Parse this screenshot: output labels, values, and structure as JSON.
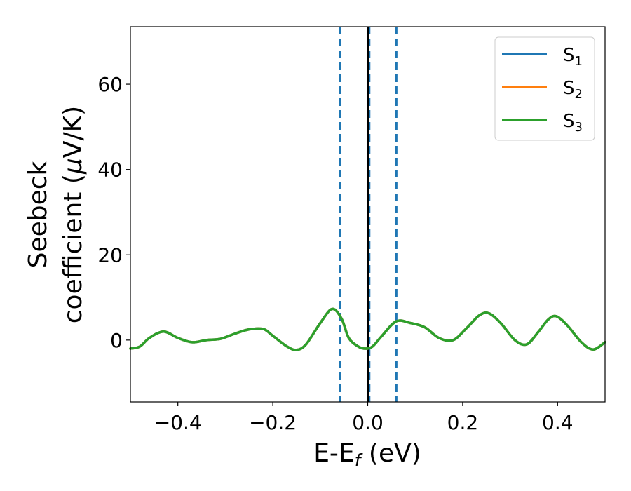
{
  "chart_data": {
    "type": "line",
    "xlabel": "E-E",
    "xlabel_subscript": "f",
    "xlabel_units": " (eV)",
    "ylabel_line1": "Seebeck",
    "ylabel_line2": "coefficient  (",
    "ylabel_mu": "μ",
    "ylabel_units": "V/K)",
    "xlim": [
      -0.5,
      0.5
    ],
    "ylim": [
      -14.5,
      73.5
    ],
    "xticks": [
      -0.4,
      -0.2,
      0.0,
      0.2,
      0.4
    ],
    "xtick_labels": [
      "−0.4",
      "−0.2",
      "0.0",
      "0.2",
      "0.4"
    ],
    "yticks": [
      0,
      20,
      40,
      60
    ],
    "ytick_labels": [
      "0",
      "20",
      "40",
      "60"
    ],
    "grid": false,
    "legend_position": "top-right",
    "vlines": [
      {
        "x": -0.058,
        "style": "dashed",
        "color": "#1f77b4"
      },
      {
        "x": 0.003,
        "style": "dashed",
        "color": "#1f77b4"
      },
      {
        "x": 0.06,
        "style": "dashed",
        "color": "#1f77b4"
      },
      {
        "x": 0.0,
        "style": "solid",
        "color": "#000000"
      }
    ],
    "series": [
      {
        "name": "S",
        "name_sub": "1",
        "color": "#1f77b4",
        "x": [
          -0.5,
          -0.48,
          -0.46,
          -0.43,
          -0.4,
          -0.37,
          -0.34,
          -0.31,
          -0.28,
          -0.25,
          -0.22,
          -0.2,
          -0.17,
          -0.15,
          -0.13,
          -0.1,
          -0.075,
          -0.055,
          -0.04,
          -0.02,
          -0.005,
          0.01,
          0.03,
          0.06,
          0.09,
          0.12,
          0.15,
          0.18,
          0.21,
          0.235,
          0.255,
          0.28,
          0.31,
          0.335,
          0.36,
          0.38,
          0.397,
          0.42,
          0.45,
          0.475,
          0.5
        ],
        "y": [
          -2.0,
          -1.5,
          0.5,
          2.0,
          0.5,
          -0.5,
          0.0,
          0.3,
          1.5,
          2.5,
          2.6,
          1.0,
          -1.5,
          -2.3,
          -1.0,
          4.0,
          7.3,
          5.0,
          0.5,
          -1.5,
          -2.0,
          -1.5,
          1.0,
          4.4,
          4.0,
          3.0,
          0.5,
          0.0,
          3.0,
          5.8,
          6.3,
          4.0,
          0.0,
          -1.0,
          2.0,
          4.8,
          5.6,
          3.5,
          -0.5,
          -2.2,
          -0.5
        ]
      },
      {
        "name": "S",
        "name_sub": "2",
        "color": "#ff7f0e",
        "x": [
          -0.5,
          -0.48,
          -0.46,
          -0.43,
          -0.4,
          -0.37,
          -0.34,
          -0.31,
          -0.28,
          -0.25,
          -0.22,
          -0.2,
          -0.17,
          -0.15,
          -0.13,
          -0.1,
          -0.075,
          -0.055,
          -0.04,
          -0.02,
          -0.005,
          0.01,
          0.03,
          0.06,
          0.09,
          0.12,
          0.15,
          0.18,
          0.21,
          0.235,
          0.255,
          0.28,
          0.31,
          0.335,
          0.36,
          0.38,
          0.397,
          0.42,
          0.45,
          0.475,
          0.5
        ],
        "y": [
          -2.0,
          -1.5,
          0.5,
          2.0,
          0.5,
          -0.5,
          0.0,
          0.3,
          1.5,
          2.5,
          2.6,
          1.0,
          -1.5,
          -2.3,
          -1.0,
          4.0,
          7.3,
          5.0,
          0.5,
          -1.5,
          -2.0,
          -1.5,
          1.0,
          4.4,
          4.0,
          3.0,
          0.5,
          0.0,
          3.0,
          5.8,
          6.3,
          4.0,
          0.0,
          -1.0,
          2.0,
          4.8,
          5.6,
          3.5,
          -0.5,
          -2.2,
          -0.5
        ]
      },
      {
        "name": "S",
        "name_sub": "3",
        "color": "#2ca02c",
        "x": [
          -0.5,
          -0.48,
          -0.46,
          -0.43,
          -0.4,
          -0.37,
          -0.34,
          -0.31,
          -0.28,
          -0.25,
          -0.22,
          -0.2,
          -0.17,
          -0.15,
          -0.13,
          -0.1,
          -0.075,
          -0.055,
          -0.04,
          -0.02,
          -0.005,
          0.01,
          0.03,
          0.06,
          0.09,
          0.12,
          0.15,
          0.18,
          0.21,
          0.235,
          0.255,
          0.28,
          0.31,
          0.335,
          0.36,
          0.38,
          0.397,
          0.42,
          0.45,
          0.475,
          0.5
        ],
        "y": [
          -2.0,
          -1.5,
          0.5,
          2.0,
          0.5,
          -0.5,
          0.0,
          0.3,
          1.5,
          2.5,
          2.6,
          1.0,
          -1.5,
          -2.3,
          -1.0,
          4.0,
          7.3,
          5.0,
          0.5,
          -1.5,
          -2.0,
          -1.5,
          1.0,
          4.4,
          4.0,
          3.0,
          0.5,
          0.0,
          3.0,
          5.8,
          6.3,
          4.0,
          0.0,
          -1.0,
          2.0,
          4.8,
          5.6,
          3.5,
          -0.5,
          -2.2,
          -0.5
        ]
      }
    ]
  }
}
